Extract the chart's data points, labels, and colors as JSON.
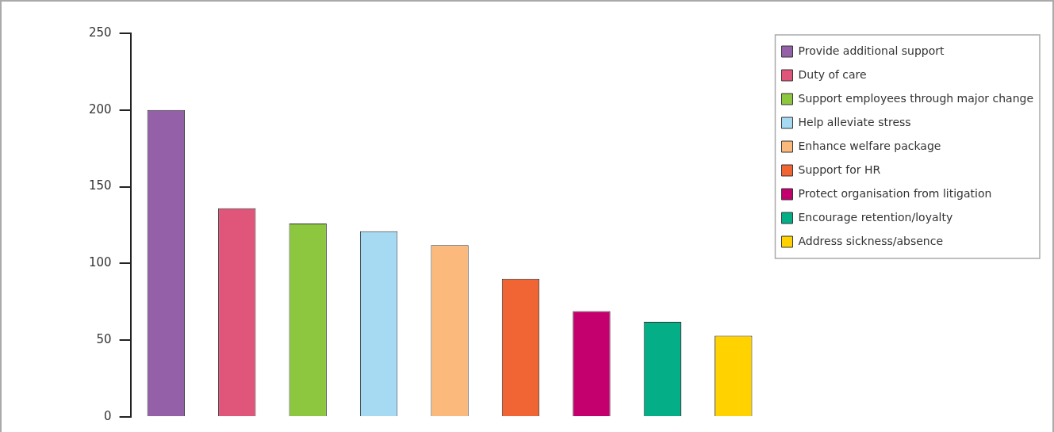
{
  "chart_data": {
    "type": "bar",
    "stacked": true,
    "categories": [
      null,
      null,
      null,
      null,
      null,
      null,
      null,
      null,
      null
    ],
    "series": [
      {
        "name": "Provide additional support",
        "color": "#9461a8",
        "values": [
          200,
          null,
          null,
          null,
          null,
          null,
          null,
          null,
          null
        ]
      },
      {
        "name": "Duty of care",
        "color": "#e0557a",
        "values": [
          null,
          136,
          null,
          null,
          null,
          null,
          null,
          null,
          null
        ]
      },
      {
        "name": "Support employees through major change",
        "color": "#8dc63f",
        "values": [
          null,
          null,
          126,
          null,
          null,
          null,
          null,
          null,
          null
        ]
      },
      {
        "name": "Help alleviate stress",
        "color": "#a6d9f2",
        "values": [
          null,
          null,
          null,
          121,
          null,
          null,
          null,
          null,
          null
        ]
      },
      {
        "name": "Enhance welfare package",
        "color": "#fbba7b",
        "values": [
          null,
          null,
          null,
          null,
          112,
          null,
          null,
          null,
          null
        ]
      },
      {
        "name": "Support for HR",
        "color": "#f06533",
        "values": [
          null,
          null,
          null,
          null,
          null,
          90,
          null,
          null,
          null
        ]
      },
      {
        "name": "Protect organisation from litigation",
        "color": "#c4006f",
        "values": [
          null,
          null,
          null,
          null,
          null,
          null,
          69,
          null,
          null
        ]
      },
      {
        "name": "Encourage retention/loyalty",
        "color": "#04ae86",
        "values": [
          null,
          null,
          null,
          null,
          null,
          null,
          null,
          62,
          null
        ]
      },
      {
        "name": "Address sickness/absence",
        "color": "#ffd200",
        "values": [
          null,
          null,
          null,
          null,
          null,
          null,
          null,
          null,
          53
        ]
      }
    ],
    "ylim": [
      0,
      250
    ],
    "yticks": [
      0,
      50,
      100,
      150,
      200,
      250
    ],
    "grid": false,
    "legend": "right",
    "tick_labels": "y"
  }
}
